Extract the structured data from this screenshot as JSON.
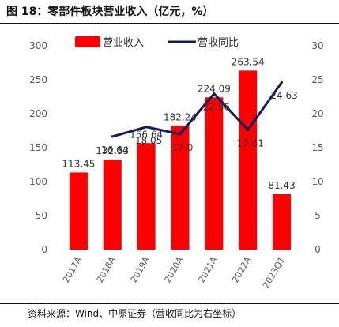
{
  "header": {
    "title": "图 18：零部件板块营业收入（亿元，%）"
  },
  "footer": {
    "source": "资料来源：Wind、中原证券（营收同比为右坐标）"
  },
  "colors": {
    "bar": "#ff0000",
    "line": "#0e1f5b",
    "axis_text": "#595959"
  },
  "chart_data": {
    "type": "bar",
    "title": "零部件板块营业收入（亿元，%）",
    "categories": [
      "2017A",
      "2018A",
      "2019A",
      "2020A",
      "2021A",
      "2022A",
      "2023Q1"
    ],
    "y_ticks": [
      "0",
      "50",
      "100",
      "150",
      "200",
      "250",
      "300"
    ],
    "y2_ticks": [
      "0",
      "5",
      "10",
      "15",
      "20",
      "25",
      "30"
    ],
    "ylim": [
      0,
      300
    ],
    "y2lim": [
      0,
      30
    ],
    "grid": false,
    "legend_position": "top",
    "series": [
      {
        "name": "营业收入",
        "type": "bar",
        "axis": "left",
        "values": [
          113.45,
          132.33,
          156.64,
          182.24,
          224.09,
          263.54,
          81.43
        ],
        "labels": [
          "113.45",
          "132.33",
          "156.64",
          "182.24",
          "224.09",
          "263.54",
          "81.43"
        ]
      },
      {
        "name": "营收同比",
        "type": "line",
        "axis": "right",
        "values": [
          null,
          16.64,
          18.05,
          17.0,
          22.96,
          17.61,
          24.63
        ],
        "labels": [
          "",
          "16.64",
          "18.05",
          "17.0",
          "22.96",
          "17.61",
          "24.63"
        ]
      }
    ]
  }
}
